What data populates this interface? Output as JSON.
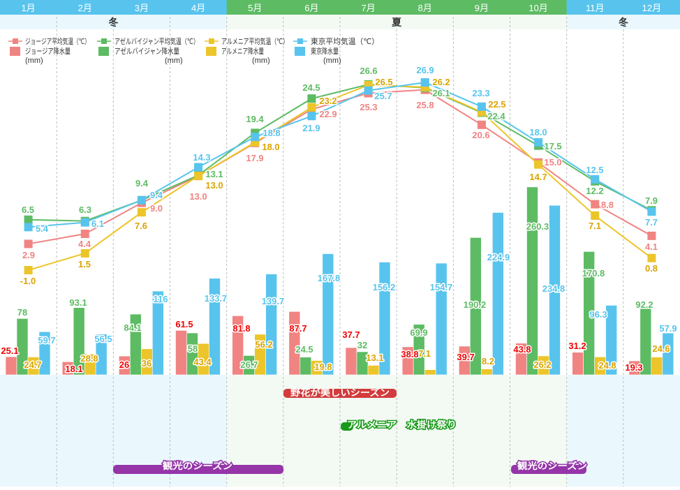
{
  "chart_data": {
    "type": "bar+line",
    "categories": [
      "1月",
      "2月",
      "3月",
      "4月",
      "5月",
      "6月",
      "7月",
      "8月",
      "9月",
      "10月",
      "11月",
      "12月"
    ],
    "seasons": [
      {
        "label": "冬",
        "from": 0,
        "to": 3,
        "kind": "winter"
      },
      {
        "label": "夏",
        "from": 4,
        "to": 9,
        "kind": "summer"
      },
      {
        "label": "冬",
        "from": 10,
        "to": 11,
        "kind": "winter"
      }
    ],
    "header_kinds": [
      "winter",
      "winter",
      "winter",
      "winter",
      "summer",
      "summer",
      "summer",
      "summer",
      "summer",
      "summer",
      "winter",
      "winter"
    ],
    "temperature_series": [
      {
        "name": "ジョージア平均気温（℃）",
        "color": "#f08482",
        "label_color": "#f08482",
        "labels": [
          "2.9",
          "4.4",
          "9.0",
          "13.0",
          "17.9",
          "22.9",
          "25.3",
          "25.8",
          "20.6",
          "15.0",
          "8.8",
          "4.1"
        ],
        "values": [
          2.9,
          4.4,
          9.0,
          13.0,
          17.9,
          22.9,
          25.3,
          25.8,
          20.6,
          15.0,
          8.8,
          4.1
        ]
      },
      {
        "name": "アゼルバイジャン平均気温（℃）",
        "color": "#5dbb63",
        "label_color": "#5dbb63",
        "labels": [
          "6.5",
          "6.3",
          "9.4",
          "13.1",
          "19.4",
          "24.5",
          "26.6",
          "26.1",
          "22.4",
          "17.5",
          "12.2",
          "7.9"
        ],
        "values": [
          6.5,
          6.3,
          9.4,
          13.1,
          19.4,
          24.5,
          26.6,
          26.1,
          22.4,
          17.5,
          12.2,
          7.9
        ]
      },
      {
        "name": "アルメニア平均気温（℃）",
        "color": "#ecc52a",
        "label_color": "#d9a400",
        "labels": [
          "-1.0",
          "1.5",
          "7.6",
          "13.0",
          "18.0",
          "23.2",
          "26.5",
          "26.2",
          "22.5",
          "14.7",
          "7.1",
          "0.8"
        ],
        "values": [
          -1.0,
          1.5,
          7.6,
          13.0,
          18.0,
          23.2,
          26.5,
          26.2,
          22.5,
          14.7,
          7.1,
          0.8
        ]
      },
      {
        "name": "東京平均気温（℃）",
        "color": "#58c4ed",
        "label_color": "#58c4ed",
        "labels": [
          "5.4",
          "6.1",
          "9.4",
          "14.3",
          "18.8",
          "21.9",
          "25.7",
          "26.9",
          "23.3",
          "18.0",
          "12.5",
          "7.7"
        ],
        "values": [
          5.4,
          6.1,
          9.4,
          14.3,
          18.8,
          21.9,
          25.7,
          26.9,
          23.3,
          18.0,
          12.5,
          7.7
        ]
      }
    ],
    "precipitation_series": [
      {
        "name": "ジョージア降水量",
        "unit": "(mm)",
        "color": "#f08482",
        "label_color": "#f00000",
        "labels": [
          "25.1",
          "18.1",
          "26",
          "61.5",
          "81.8",
          "87.7",
          "37.7",
          "38.8",
          "39.7",
          "43.8",
          "31.2",
          "19.3"
        ],
        "values": [
          25.1,
          18.1,
          26,
          61.5,
          81.8,
          87.7,
          37.7,
          38.8,
          39.7,
          43.8,
          31.2,
          19.3
        ]
      },
      {
        "name": "アゼルバイジャン降水量",
        "unit": "(mm)",
        "color": "#5dbb63",
        "label_color": "#5dbb63",
        "labels": [
          "78",
          "93.1",
          "84.1",
          "58",
          "26.7",
          "24.5",
          "32",
          "69.9",
          "190.2",
          "260.3",
          "170.8",
          "92.2"
        ],
        "values": [
          78,
          93.1,
          84.1,
          58,
          26.7,
          24.5,
          32,
          69.9,
          190.2,
          260.3,
          170.8,
          92.2
        ]
      },
      {
        "name": "アルメニア降水量",
        "unit": "(mm)",
        "color": "#ecc52a",
        "label_color": "#d9a400",
        "labels": [
          "24.7",
          "28.8",
          "36",
          "43.4",
          "56.2",
          "19.8",
          "13.1",
          "7.1",
          "8.2",
          "26.2",
          "24.8",
          "24.6"
        ],
        "values": [
          24.7,
          28.8,
          36,
          43.4,
          56.2,
          19.8,
          13.1,
          7.1,
          8.2,
          26.2,
          24.8,
          24.6
        ]
      },
      {
        "name": "東京降水量",
        "unit": "(mm)",
        "color": "#58c4ed",
        "label_color": "#58c4ed",
        "labels": [
          "59.7",
          "56.5",
          "116",
          "133.7",
          "139.7",
          "167.8",
          "156.2",
          "154.7",
          "224.9",
          "234.8",
          "96.3",
          "57.9"
        ],
        "values": [
          59.7,
          56.5,
          116,
          133.7,
          139.7,
          167.8,
          156.2,
          154.7,
          224.9,
          234.8,
          96.3,
          57.9
        ]
      }
    ],
    "temperature_range": [
      -1.0,
      26.9
    ],
    "precipitation_range": [
      0,
      260.3
    ],
    "legend_placement": "top",
    "annotations": [
      {
        "label": "野花が美しいシーズン",
        "color": "#d23c3c",
        "from_month": 6,
        "to_month": 7
      },
      {
        "label": "アルメニア　水掛け祭り",
        "color": "#1a9a1a",
        "from_month": 7,
        "to_month": 7
      },
      {
        "label": "観光のシーズン",
        "color": "#9535a8",
        "from_month": 3,
        "to_month": 5
      },
      {
        "label": "観光のシーズン",
        "color": "#9535a8",
        "from_month": 10,
        "to_month": 11
      }
    ],
    "colors": {
      "winter_header": "#58c4ed",
      "summer_header": "#5dbb63",
      "winter_bg": "#eaf8fe",
      "summer_bg": "#f3faf3"
    }
  }
}
